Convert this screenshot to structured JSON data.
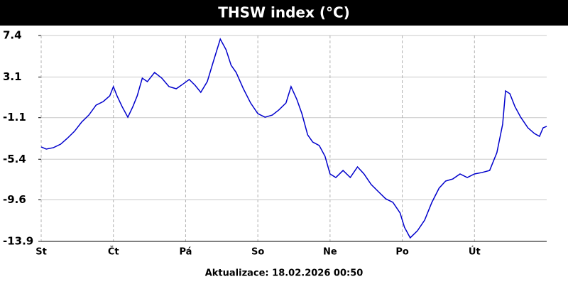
{
  "chart_data": {
    "type": "line",
    "title": "THSW index (°C)",
    "footer": "Aktualizace: 18.02.2026 00:50",
    "x": [
      0,
      0.07,
      0.17,
      0.27,
      0.36,
      0.46,
      0.56,
      0.66,
      0.76,
      0.86,
      0.95,
      1.0,
      1.05,
      1.12,
      1.2,
      1.27,
      1.33,
      1.4,
      1.47,
      1.57,
      1.67,
      1.77,
      1.87,
      1.97,
      2.05,
      2.13,
      2.21,
      2.3,
      2.38,
      2.48,
      2.56,
      2.63,
      2.7,
      2.8,
      2.9,
      3.0,
      3.1,
      3.2,
      3.29,
      3.39,
      3.46,
      3.54,
      3.61,
      3.69,
      3.76,
      3.85,
      3.93,
      4.0,
      4.08,
      4.18,
      4.28,
      4.38,
      4.47,
      4.57,
      4.67,
      4.77,
      4.87,
      4.97,
      5.03,
      5.11,
      5.21,
      5.31,
      5.41,
      5.51,
      5.6,
      5.7,
      5.8,
      5.9,
      6.0,
      6.1,
      6.21,
      6.31,
      6.39,
      6.43,
      6.49,
      6.56,
      6.64,
      6.74,
      6.83,
      6.9,
      6.95,
      7.0
    ],
    "series": [
      {
        "name": "THSW index",
        "color": "#0000cc",
        "values": [
          -4.13,
          -4.35,
          -4.2,
          -3.84,
          -3.25,
          -2.52,
          -1.56,
          -0.83,
          0.2,
          0.57,
          1.16,
          2.11,
          1.16,
          0.05,
          -1.05,
          0.05,
          1.16,
          2.99,
          2.63,
          3.58,
          2.99,
          2.11,
          1.89,
          2.41,
          2.85,
          2.26,
          1.52,
          2.63,
          4.61,
          7.03,
          5.93,
          4.32,
          3.58,
          1.89,
          0.42,
          -0.68,
          -1.05,
          -0.83,
          -0.31,
          0.42,
          2.11,
          0.79,
          -0.68,
          -2.88,
          -3.62,
          -3.98,
          -5.09,
          -6.92,
          -7.29,
          -6.56,
          -7.29,
          -6.19,
          -6.92,
          -8.02,
          -8.76,
          -9.49,
          -9.86,
          -10.96,
          -12.43,
          -13.53,
          -12.8,
          -11.7,
          -9.86,
          -8.39,
          -7.66,
          -7.44,
          -6.92,
          -7.29,
          -6.92,
          -6.78,
          -6.56,
          -4.72,
          -1.78,
          1.67,
          1.38,
          0.05,
          -1.05,
          -2.15,
          -2.74,
          -3.03,
          -2.15,
          -2.0
        ]
      }
    ],
    "xlim": [
      0,
      7
    ],
    "xticks": [
      {
        "value": 0,
        "label": "St"
      },
      {
        "value": 1,
        "label": "Čt"
      },
      {
        "value": 2,
        "label": "Pá"
      },
      {
        "value": 3,
        "label": "So"
      },
      {
        "value": 4,
        "label": "Ne"
      },
      {
        "value": 5,
        "label": "Po"
      },
      {
        "value": 6,
        "label": "Út"
      }
    ],
    "ylim": [
      -13.9,
      7.4
    ],
    "yticks": [
      7.4,
      3.1,
      -1.1,
      -5.4,
      -9.6,
      -13.9
    ],
    "grid": true
  }
}
